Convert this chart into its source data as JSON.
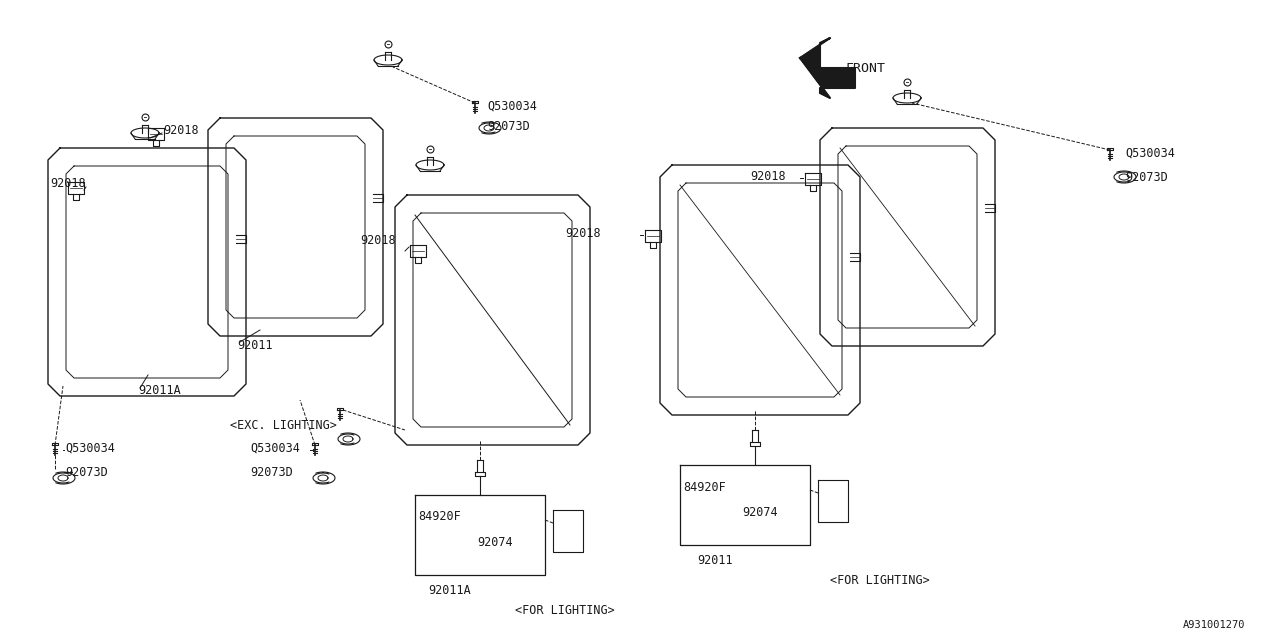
{
  "bg_color": "#ffffff",
  "line_color": "#1a1a1a",
  "text_color": "#1a1a1a",
  "title_bottom_right": "A931001270",
  "font_size": 8.5,
  "front_label": "FRONT",
  "exc_lighting": "<EXC. LIGHTING>",
  "for_lighting": "<FOR LIGHTING>",
  "parts": {
    "92018": "92018",
    "92011": "92011",
    "92011A": "92011A",
    "92073D": "92073D",
    "Q530034": "Q530034",
    "84920F": "84920F",
    "92074": "92074"
  }
}
